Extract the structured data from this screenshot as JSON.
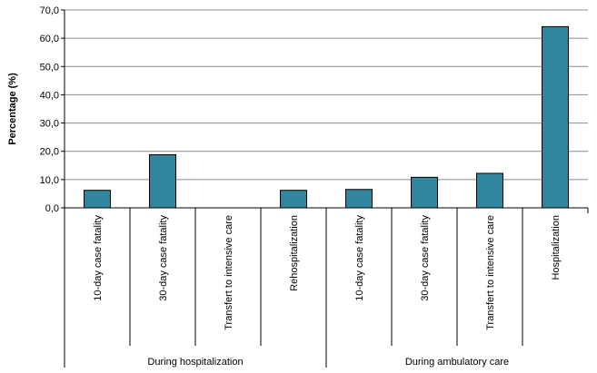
{
  "chart_data": {
    "type": "bar",
    "title": "",
    "ylabel": "Percentage (%)",
    "xlabel": "",
    "ylim": [
      0,
      70
    ],
    "yticks": [
      "0,0",
      "10,0",
      "20,0",
      "30,0",
      "40,0",
      "50,0",
      "60,0",
      "70,0"
    ],
    "ytick_values": [
      0,
      10,
      20,
      30,
      40,
      50,
      60,
      70
    ],
    "grid": true,
    "legend": "none",
    "bar_color": "#31859c",
    "categories": [
      "10-day case fatality",
      "30-day case fatality",
      "Transfert to intensive care",
      "Rehospitalization",
      "10-day case fatality",
      "30-day case fatality",
      "Transfert to intensive care",
      "Hospitalization"
    ],
    "values": [
      6.2,
      18.8,
      0,
      6.2,
      6.5,
      10.8,
      12.2,
      64.1
    ],
    "groups": [
      {
        "label": "During hospitalization",
        "count": 4
      },
      {
        "label": "During ambulatory care",
        "count": 4
      }
    ]
  }
}
